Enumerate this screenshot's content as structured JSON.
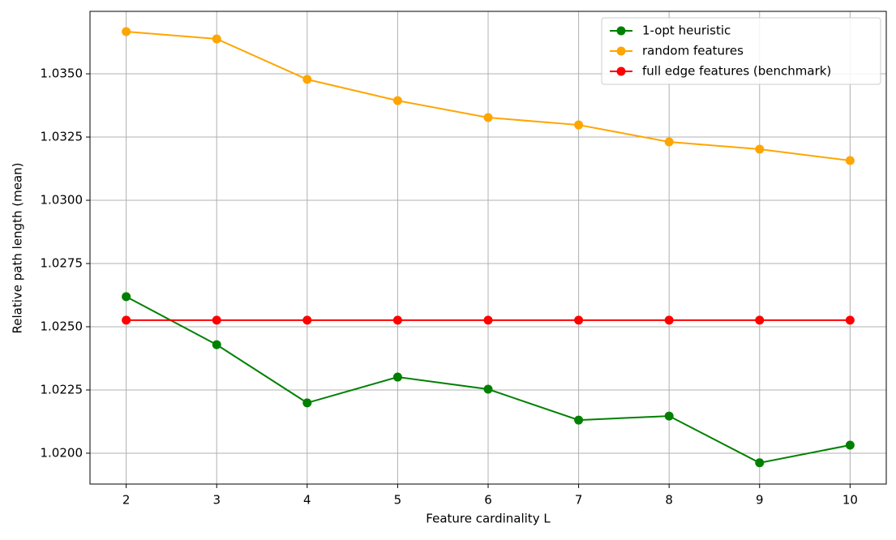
{
  "chart_data": {
    "type": "line",
    "x_label": "Feature cardinality L",
    "y_label": "Relative path length (mean)",
    "x": [
      2,
      3,
      4,
      5,
      6,
      7,
      8,
      9,
      10
    ],
    "series": [
      {
        "name": "1-opt heuristic",
        "color": "#008000",
        "values": [
          1.02619,
          1.02429,
          1.02199,
          1.02301,
          1.02253,
          1.02131,
          1.02147,
          1.01962,
          1.02032
        ]
      },
      {
        "name": "random features",
        "color": "#ffa500",
        "values": [
          1.03667,
          1.03638,
          1.03478,
          1.03394,
          1.03327,
          1.03298,
          1.03231,
          1.03202,
          1.03157
        ]
      },
      {
        "name": "full edge features (benchmark)",
        "color": "#ff0000",
        "values": [
          1.02526,
          1.02526,
          1.02526,
          1.02526,
          1.02526,
          1.02526,
          1.02526,
          1.02526,
          1.02526
        ]
      }
    ],
    "xlim": [
      1.6,
      10.4
    ],
    "xticks": [
      2,
      3,
      4,
      5,
      6,
      7,
      8,
      9,
      10
    ],
    "ylim": [
      1.01878,
      1.03747
    ],
    "yticks": [
      {
        "value": 1.02,
        "label": "1.0200"
      },
      {
        "value": 1.0225,
        "label": "1.0225"
      },
      {
        "value": 1.025,
        "label": "1.0250"
      },
      {
        "value": 1.0275,
        "label": "1.0275"
      },
      {
        "value": 1.03,
        "label": "1.0300"
      },
      {
        "value": 1.0325,
        "label": "1.0325"
      },
      {
        "value": 1.035,
        "label": "1.0350"
      }
    ],
    "grid": true,
    "legend": "upper right"
  }
}
